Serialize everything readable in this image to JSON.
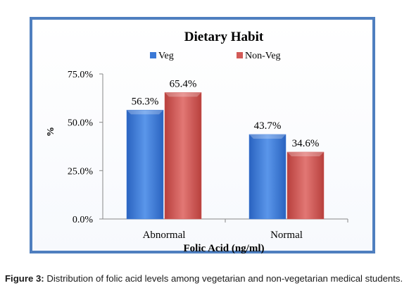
{
  "chart_data": {
    "type": "bar",
    "title": "Dietary Habit",
    "xlabel": "Folic Acid (ng/ml)",
    "ylabel": "%",
    "categories": [
      "Abnormal",
      "Normal"
    ],
    "series": [
      {
        "name": "Veg",
        "values": [
          56.3,
          43.7
        ],
        "labels": [
          "56.3%",
          "43.7%"
        ],
        "color": "#3a78d6"
      },
      {
        "name": "Non-Veg",
        "values": [
          65.4,
          34.6
        ],
        "labels": [
          "65.4%",
          "34.6%"
        ],
        "color": "#d25a57"
      }
    ],
    "yticks": [
      "0.0%",
      "25.0%",
      "50.0%",
      "75.0%"
    ],
    "ylim": [
      0,
      75
    ],
    "legend": "top",
    "grid": false
  },
  "caption": {
    "label": "Figure 3:",
    "text": " Distribution of folic acid levels among vegetarian and non-vegetarian medical students."
  }
}
